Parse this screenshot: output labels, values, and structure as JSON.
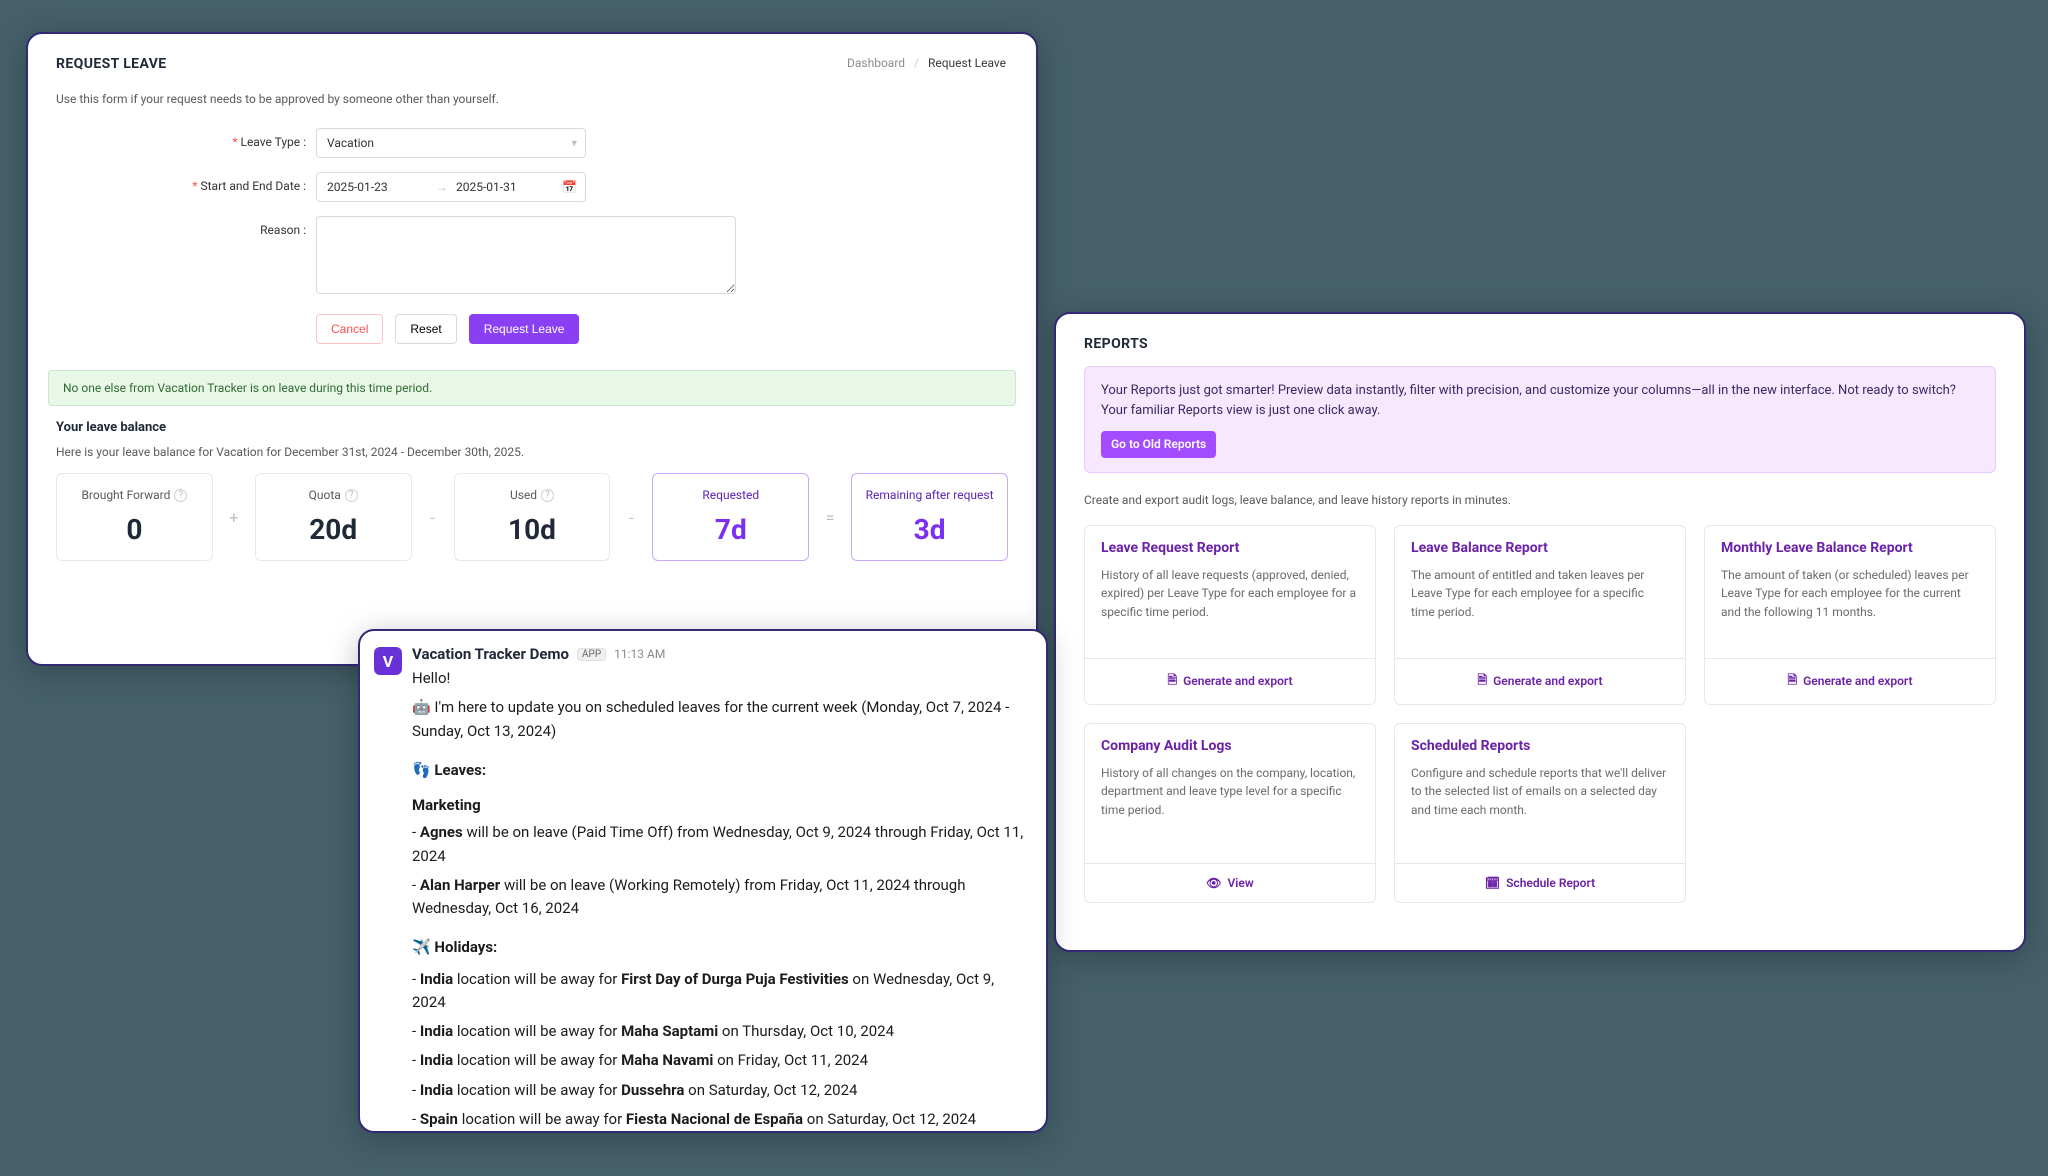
{
  "colors": {
    "bg": "#45606a",
    "card": "#ffffff",
    "purple": "#7b2ff2",
    "purpleBtn": "#8a3ff3",
    "purpleSoft": "#f6e8ff",
    "danger": "#ff4d4f",
    "greenAlert": "#e9f7e9",
    "link": "#6b21a8"
  },
  "request": {
    "title": "REQUEST LEAVE",
    "breadcrumb": {
      "home": "Dashboard",
      "sep": "/",
      "current": "Request Leave"
    },
    "hint": "Use this form if your request needs to be approved by someone other than yourself.",
    "labels": {
      "leaveType": "Leave Type :",
      "range": "Start and End Date :",
      "reason": "Reason :"
    },
    "leaveType": {
      "value": "Vacation"
    },
    "range": {
      "start": "2025-01-23",
      "arrow": "→",
      "end": "2025-01-31"
    },
    "reason": "",
    "buttons": {
      "cancel": "Cancel",
      "reset": "Reset",
      "submit": "Request Leave"
    },
    "alert": "No one else from Vacation Tracker is on leave during this time period.",
    "balance": {
      "heading": "Your leave balance",
      "sub": "Here is your leave balance for Vacation for December 31st, 2024 - December 30th, 2025.",
      "cards": [
        {
          "title": "Brought Forward",
          "value": "0",
          "help": true
        },
        {
          "title": "Quota",
          "value": "20d",
          "help": true
        },
        {
          "title": "Used",
          "value": "10d",
          "help": true
        },
        {
          "title": "Requested",
          "value": "7d",
          "purple": true
        },
        {
          "title": "Remaining after request",
          "value": "3d",
          "purple": true
        }
      ],
      "ops": [
        "+",
        "-",
        "-",
        "="
      ]
    }
  },
  "reports": {
    "title": "REPORTS",
    "banner": {
      "text": "Your Reports just got smarter! Preview data instantly, filter with precision, and customize your columns—all in the new interface. Not ready to switch? Your familiar Reports view is just one click away.",
      "button": "Go to Old Reports"
    },
    "sub": "Create and export audit logs, leave balance, and leave history reports in minutes.",
    "cards": [
      {
        "title": "Leave Request Report",
        "desc": "History of all leave requests (approved, denied, expired) per Leave Type for each employee for a specific time period.",
        "action": "Generate and export",
        "icon": "doc"
      },
      {
        "title": "Leave Balance Report",
        "desc": "The amount of entitled and taken leaves per Leave Type for each employee for a specific time period.",
        "action": "Generate and export",
        "icon": "doc"
      },
      {
        "title": "Monthly Leave Balance Report",
        "desc": "The amount of taken (or scheduled) leaves per Leave Type for each employee for the current and the following 11 months.",
        "action": "Generate and export",
        "icon": "doc"
      },
      {
        "title": "Company Audit Logs",
        "desc": "History of all changes on the company, location, department and leave type level for a specific time period.",
        "action": "View",
        "icon": "eye"
      },
      {
        "title": "Scheduled Reports",
        "desc": "Configure and schedule reports that we'll deliver to the selected list of emails on a selected day and time each month.",
        "action": "Schedule Report",
        "icon": "cal"
      }
    ]
  },
  "slack": {
    "app": "Vacation Tracker Demo",
    "tag": "APP",
    "time": "11:13 AM",
    "greeting": "Hello!",
    "intro": "I'm here to update you on scheduled leaves for the current week (Monday, Oct 7, 2024 - Sunday, Oct 13, 2024)",
    "leavesHeader": "Leaves:",
    "team": "Marketing",
    "leaves": [
      {
        "name": "Agnes",
        "rest": " will be on leave (Paid Time Off) from Wednesday, Oct 9, 2024 through Friday, Oct 11, 2024"
      },
      {
        "name": "Alan Harper",
        "rest": " will be on leave (Working Remotely) from Friday, Oct 11, 2024 through Wednesday, Oct 16, 2024"
      }
    ],
    "holidaysHeader": "Holidays:",
    "holidays": [
      {
        "loc": "India",
        "event": "First Day of Durga Puja Festivities",
        "tail": " on Wednesday, Oct 9, 2024"
      },
      {
        "loc": "India",
        "event": "Maha Saptami",
        "tail": " on Thursday, Oct 10, 2024"
      },
      {
        "loc": "India",
        "event": "Maha Navami",
        "tail": " on Friday, Oct 11, 2024"
      },
      {
        "loc": "India",
        "event": "Dussehra",
        "tail": " on Saturday, Oct 12, 2024"
      },
      {
        "loc": "Spain",
        "event": "Fiesta Nacional de España",
        "tail": " on Saturday, Oct 12, 2024"
      }
    ]
  }
}
